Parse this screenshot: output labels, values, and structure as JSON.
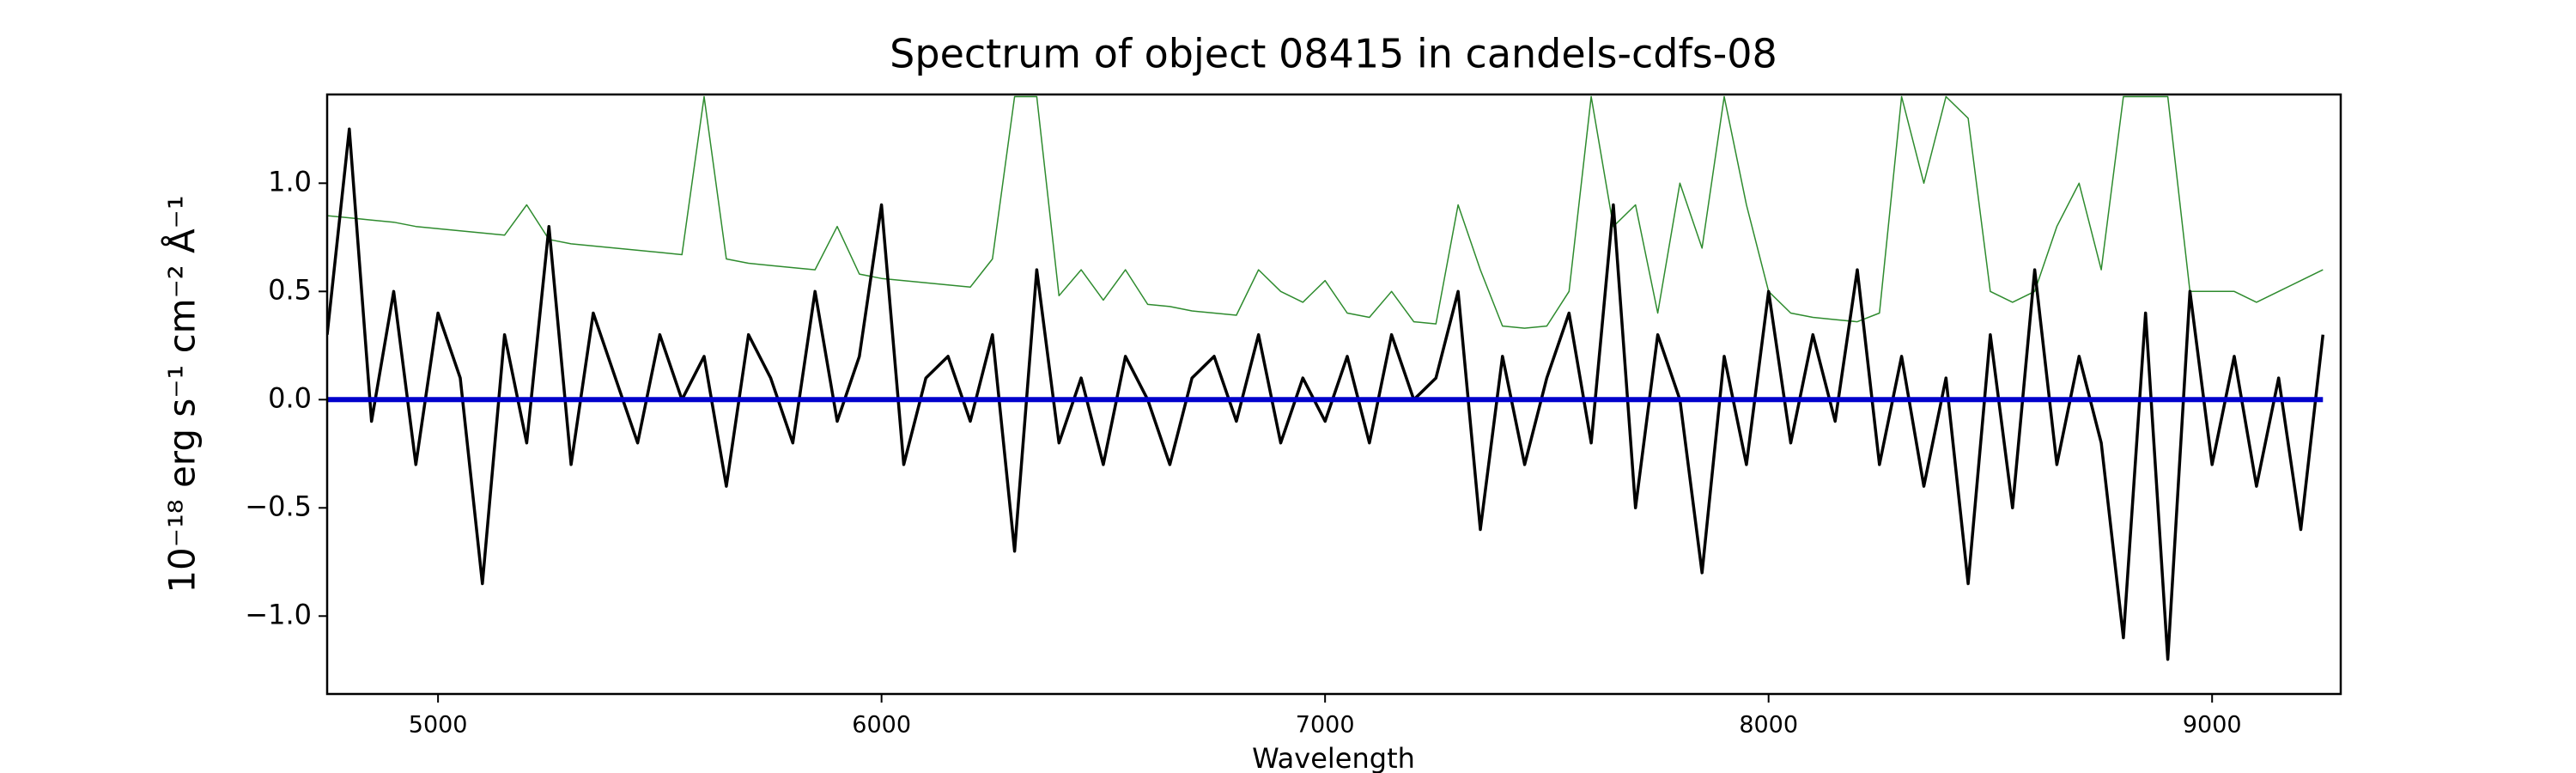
{
  "chart_data": {
    "type": "line",
    "title": "Spectrum of object 08415 in candels-cdfs-08",
    "x_label": "Wavelength",
    "y_label": "10⁻¹⁸ erg s⁻¹ cm⁻² Å⁻¹",
    "x": [
      4750,
      4800,
      4850,
      4900,
      4950,
      5000,
      5050,
      5100,
      5150,
      5200,
      5250,
      5300,
      5350,
      5400,
      5450,
      5500,
      5550,
      5600,
      5650,
      5700,
      5750,
      5800,
      5850,
      5900,
      5950,
      6000,
      6050,
      6100,
      6150,
      6200,
      6250,
      6300,
      6350,
      6400,
      6450,
      6500,
      6550,
      6600,
      6650,
      6700,
      6750,
      6800,
      6850,
      6900,
      6950,
      7000,
      7050,
      7100,
      7150,
      7200,
      7250,
      7300,
      7350,
      7400,
      7450,
      7500,
      7550,
      7600,
      7650,
      7700,
      7750,
      7800,
      7850,
      7900,
      7950,
      8000,
      8050,
      8100,
      8150,
      8200,
      8250,
      8300,
      8350,
      8400,
      8450,
      8500,
      8550,
      8600,
      8650,
      8700,
      8750,
      8800,
      8850,
      8900,
      8950,
      9000,
      9050,
      9100,
      9150,
      9200,
      9250
    ],
    "series": [
      {
        "color": "#2e8b2e",
        "width": 1.5,
        "values": [
          0.85,
          0.84,
          0.83,
          0.82,
          0.8,
          0.79,
          0.78,
          0.77,
          0.76,
          0.9,
          0.74,
          0.72,
          0.71,
          0.7,
          0.69,
          0.68,
          0.67,
          1.4,
          0.65,
          0.63,
          0.62,
          0.61,
          0.6,
          0.8,
          0.58,
          0.56,
          0.55,
          0.54,
          0.53,
          0.52,
          0.65,
          1.4,
          1.4,
          0.48,
          0.6,
          0.46,
          0.6,
          0.44,
          0.43,
          0.41,
          0.4,
          0.39,
          0.6,
          0.5,
          0.45,
          0.55,
          0.4,
          0.38,
          0.5,
          0.36,
          0.35,
          0.9,
          0.6,
          0.34,
          0.33,
          0.34,
          0.5,
          1.4,
          0.8,
          0.9,
          0.4,
          1.0,
          0.7,
          1.4,
          0.9,
          0.5,
          0.4,
          0.38,
          0.37,
          0.36,
          0.4,
          1.4,
          1.0,
          1.4,
          1.3,
          0.5,
          0.45,
          0.5,
          0.8,
          1.0,
          0.6,
          1.4,
          1.4,
          1.4,
          0.5,
          0.5,
          0.5,
          0.45,
          0.5,
          0.55,
          0.6
        ]
      },
      {
        "color": "#000000",
        "width": 3.5,
        "values": [
          0.3,
          1.25,
          -0.1,
          0.5,
          -0.3,
          0.4,
          0.1,
          -0.85,
          0.3,
          -0.2,
          0.8,
          -0.3,
          0.4,
          0.1,
          -0.2,
          0.3,
          0.0,
          0.2,
          -0.4,
          0.3,
          0.1,
          -0.2,
          0.5,
          -0.1,
          0.2,
          0.9,
          -0.3,
          0.1,
          0.2,
          -0.1,
          0.3,
          -0.7,
          0.6,
          -0.2,
          0.1,
          -0.3,
          0.2,
          0.0,
          -0.3,
          0.1,
          0.2,
          -0.1,
          0.3,
          -0.2,
          0.1,
          -0.1,
          0.2,
          -0.2,
          0.3,
          0.0,
          0.1,
          0.5,
          -0.6,
          0.2,
          -0.3,
          0.1,
          0.4,
          -0.2,
          0.9,
          -0.5,
          0.3,
          0.0,
          -0.8,
          0.2,
          -0.3,
          0.5,
          -0.2,
          0.3,
          -0.1,
          0.6,
          -0.3,
          0.2,
          -0.4,
          0.1,
          -0.85,
          0.3,
          -0.5,
          0.6,
          -0.3,
          0.2,
          -0.2,
          -1.1,
          0.4,
          -1.2,
          0.5,
          -0.3,
          0.2,
          -0.4,
          0.1,
          -0.6,
          0.3
        ]
      },
      {
        "color": "#0000cc",
        "width": 6,
        "values": [
          0,
          0,
          0,
          0,
          0,
          0,
          0,
          0,
          0,
          0,
          0,
          0,
          0,
          0,
          0,
          0,
          0,
          0,
          0,
          0,
          0,
          0,
          0,
          0,
          0,
          0,
          0,
          0,
          0,
          0,
          0,
          0,
          0,
          0,
          0,
          0,
          0,
          0,
          0,
          0,
          0,
          0,
          0,
          0,
          0,
          0,
          0,
          0,
          0,
          0,
          0,
          0,
          0,
          0,
          0,
          0,
          0,
          0,
          0,
          0,
          0,
          0,
          0,
          0,
          0,
          0,
          0,
          0,
          0,
          0,
          0,
          0,
          0,
          0,
          0,
          0,
          0,
          0,
          0,
          0,
          0,
          0,
          0,
          0,
          0,
          0,
          0,
          0,
          0,
          0,
          0
        ]
      }
    ],
    "xlim": [
      4750,
      9290
    ],
    "ylim": [
      -1.36,
      1.41
    ],
    "xticks": [
      5000,
      6000,
      7000,
      8000,
      9000
    ],
    "yticks": [
      {
        "value": -1.0,
        "label": "−1.0"
      },
      {
        "value": -0.5,
        "label": "−0.5"
      },
      {
        "value": 0.0,
        "label": "0.0"
      },
      {
        "value": 0.5,
        "label": "0.5"
      },
      {
        "value": 1.0,
        "label": "1.0"
      }
    ],
    "grid": false
  }
}
